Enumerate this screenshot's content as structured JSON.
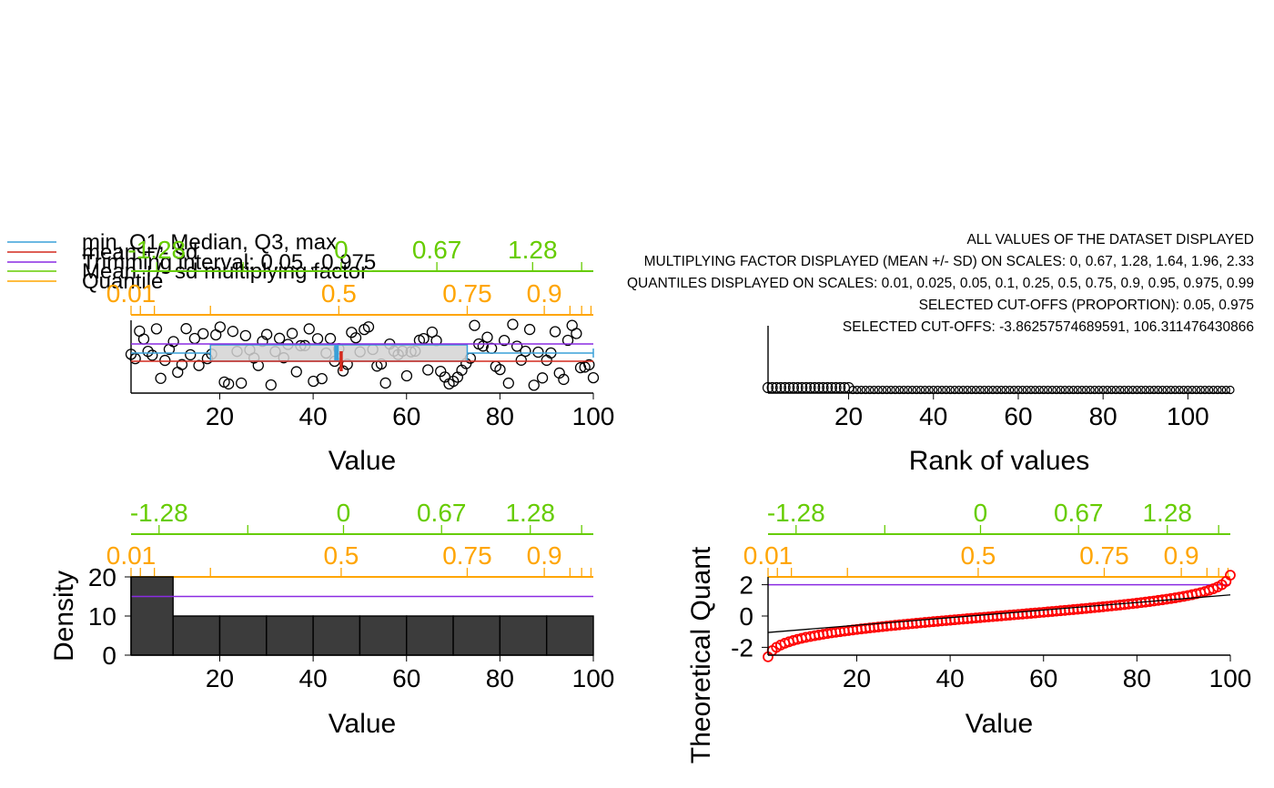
{
  "colors": {
    "boxplot": "#3aa0d8",
    "mean_sd": "#d42a1e",
    "trimming": "#8a2be2",
    "sd_factor": "#66cc00",
    "quantile": "#ffa500",
    "box_fill": "#d3d3d3",
    "bars": "#3c3c3c",
    "qq_points": "#ff0000",
    "axis": "#000000"
  },
  "legend": {
    "items": [
      {
        "label": "min, Q1, Median, Q3, max",
        "color_key": "boxplot"
      },
      {
        "label": "mean +/- sd",
        "color_key": "mean_sd"
      },
      {
        "label": "Trimming interval: 0.05 , 0.975",
        "color_key": "trimming"
      },
      {
        "label": "Mean +/- sd multiplying factor",
        "color_key": "sd_factor"
      },
      {
        "label": "Quantile",
        "color_key": "quantile"
      }
    ]
  },
  "info_text": [
    "ALL VALUES OF THE DATASET DISPLAYED",
    "MULTIPLYING FACTOR DISPLAYED (MEAN +/- SD) ON SCALES: 0, 0.67, 1.28, 1.64, 1.96, 2.33",
    "QUANTILES DISPLAYED ON SCALES: 0.01, 0.025, 0.05, 0.1, 0.25, 0.5, 0.75, 0.9, 0.95, 0.975, 0.99",
    "SELECTED CUT-OFFS (PROPORTION): 0.05, 0.975",
    "SELECTED CUT-OFFS: -3.86257574689591, 106.311476430866"
  ],
  "chart_data": [
    {
      "type": "scatter",
      "panel": "stripchart-boxplot",
      "xlabel": "Value",
      "xlim": [
        1,
        100
      ],
      "x_ticks": [
        20,
        40,
        60,
        80,
        100
      ],
      "y_jitter_points": 110,
      "boxplot": {
        "min": 1,
        "q1": 18,
        "median": 45,
        "q3": 73,
        "max": 100
      },
      "mean": 46,
      "sd_band": [
        -3.86,
        106.31
      ],
      "quantile_top_axis": [
        {
          "label": "0.01",
          "value": 1.0
        },
        {
          "label": "",
          "value": 3.0
        },
        {
          "label": "",
          "value": 6.0
        },
        {
          "label": "",
          "value": 18.0
        },
        {
          "label": "0.5",
          "value": 45.5
        },
        {
          "label": "0.75",
          "value": 73.0
        },
        {
          "label": "0.9",
          "value": 89.5
        },
        {
          "label": "",
          "value": 95.0
        },
        {
          "label": "",
          "value": 97.5
        },
        {
          "label": "",
          "value": 99.5
        }
      ],
      "sd_top_axis": [
        {
          "label": "-1.28",
          "value": 6.5
        },
        {
          "label": "",
          "value": 25.0
        },
        {
          "label": "0",
          "value": 46.0
        },
        {
          "label": "0.67",
          "value": 66.5
        },
        {
          "label": "1.28",
          "value": 87.0
        },
        {
          "label": "",
          "value": 97.5
        }
      ]
    },
    {
      "type": "scatter",
      "panel": "rank-plot",
      "xlabel": "Rank of values",
      "xlim": [
        1,
        110
      ],
      "x_ticks": [
        20,
        40,
        60,
        80,
        100
      ],
      "points_on_baseline": 110,
      "raised_points": 20
    },
    {
      "type": "bar",
      "panel": "histogram",
      "xlabel": "Value",
      "ylabel": "Density",
      "xlim": [
        1,
        100
      ],
      "ylim": [
        0,
        20
      ],
      "x_ticks": [
        20,
        40,
        60,
        80,
        100
      ],
      "y_ticks": [
        0,
        10,
        20
      ],
      "breaks": [
        0,
        10,
        20,
        30,
        40,
        50,
        60,
        70,
        80,
        90,
        100
      ],
      "values": [
        20,
        10,
        10,
        10,
        10,
        10,
        10,
        10,
        10,
        10
      ],
      "trimming_line": 15,
      "quantile_top_axis": [
        {
          "label": "0.01",
          "value": 1.0
        },
        {
          "label": "",
          "value": 3.0
        },
        {
          "label": "",
          "value": 6.0
        },
        {
          "label": "",
          "value": 18.0
        },
        {
          "label": "0.5",
          "value": 46.0
        },
        {
          "label": "0.75",
          "value": 73.0
        },
        {
          "label": "0.9",
          "value": 89.5
        },
        {
          "label": "",
          "value": 95.0
        },
        {
          "label": "",
          "value": 97.5
        },
        {
          "label": "",
          "value": 99.5
        }
      ],
      "sd_top_axis": [
        {
          "label": "-1.28",
          "value": 7.0
        },
        {
          "label": "",
          "value": 26.0
        },
        {
          "label": "0",
          "value": 46.5
        },
        {
          "label": "0.67",
          "value": 67.5
        },
        {
          "label": "1.28",
          "value": 86.5
        },
        {
          "label": "",
          "value": 97.5
        }
      ]
    },
    {
      "type": "scatter",
      "panel": "qq-plot",
      "xlabel": "Value",
      "ylabel": "Theoretical Quant",
      "xlim": [
        1,
        100
      ],
      "ylim": [
        -2.5,
        2.5
      ],
      "x_ticks": [
        20,
        40,
        60,
        80,
        100
      ],
      "y_ticks": [
        -2,
        0,
        2
      ],
      "trimming_line": 2,
      "reference_line": {
        "x": [
          1,
          100
        ],
        "y": [
          -1.05,
          1.35
        ]
      },
      "points": 110,
      "quantile_top_axis": [
        {
          "label": "0.01",
          "value": 1.0
        },
        {
          "label": "",
          "value": 3.0
        },
        {
          "label": "",
          "value": 6.0
        },
        {
          "label": "",
          "value": 18.0
        },
        {
          "label": "0.5",
          "value": 46.0
        },
        {
          "label": "0.75",
          "value": 73.0
        },
        {
          "label": "0.9",
          "value": 89.5
        },
        {
          "label": "",
          "value": 95.0
        },
        {
          "label": "",
          "value": 97.5
        },
        {
          "label": "",
          "value": 99.5
        }
      ],
      "sd_top_axis": [
        {
          "label": "-1.28",
          "value": 7.0
        },
        {
          "label": "",
          "value": 26.0
        },
        {
          "label": "0",
          "value": 46.5
        },
        {
          "label": "0.67",
          "value": 67.5
        },
        {
          "label": "1.28",
          "value": 86.5
        },
        {
          "label": "",
          "value": 97.5
        }
      ]
    }
  ]
}
